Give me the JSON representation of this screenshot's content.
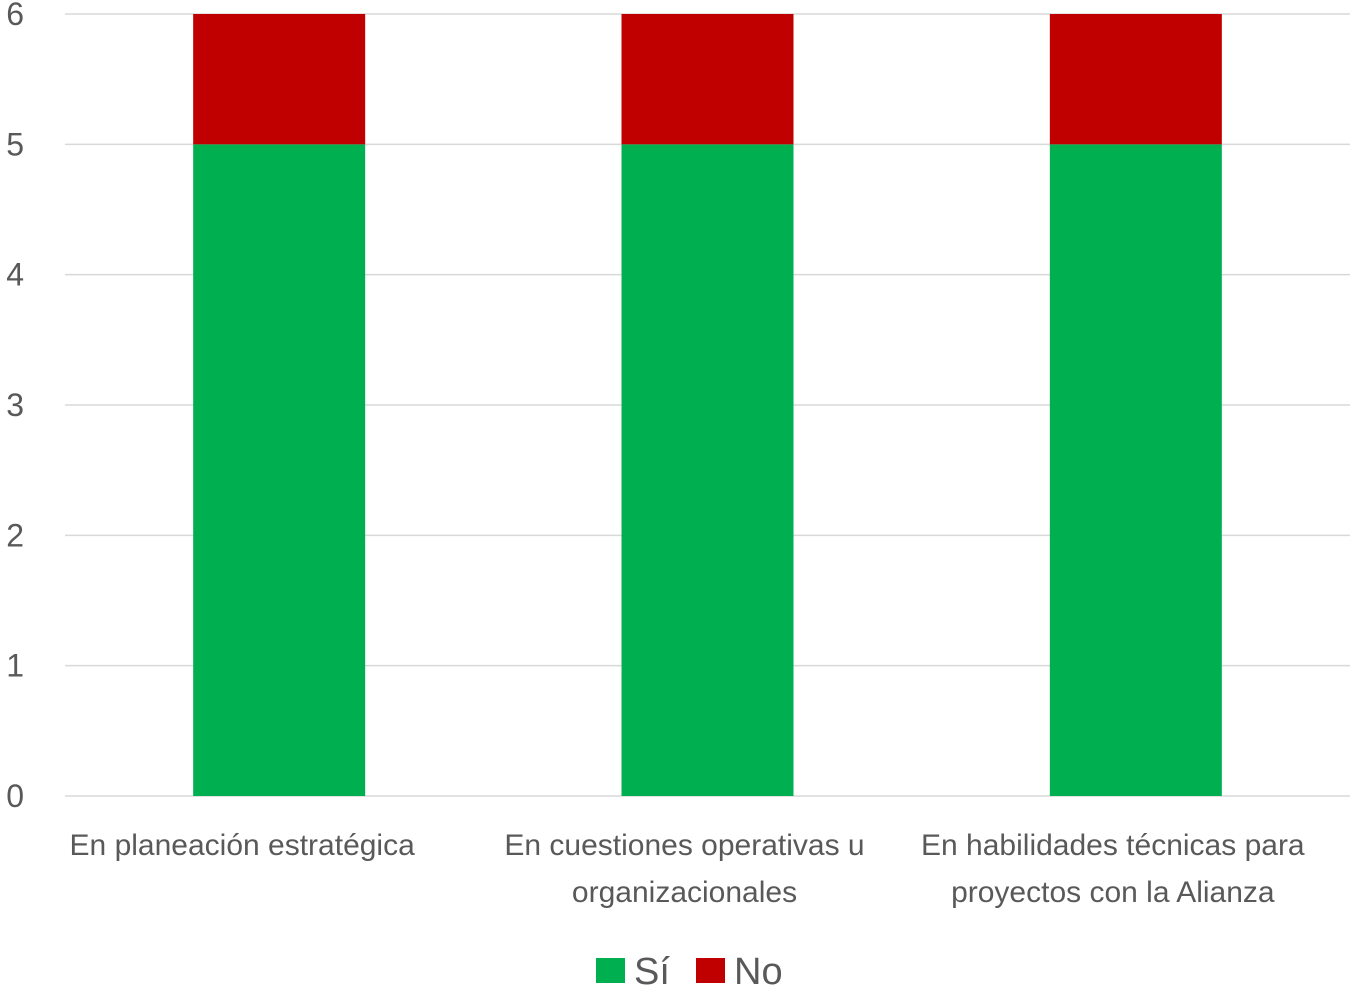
{
  "chart_data": {
    "type": "bar",
    "stacked": true,
    "categories": [
      [
        "En planeación estratégica"
      ],
      [
        "En cuestiones operativas u",
        "organizacionales"
      ],
      [
        "En habilidades técnicas para",
        "proyectos con la Alianza"
      ]
    ],
    "series": [
      {
        "name": "Sí",
        "values": [
          5,
          5,
          5
        ],
        "color": "#00B050"
      },
      {
        "name": "No",
        "values": [
          1,
          1,
          1
        ],
        "color": "#C00000"
      }
    ],
    "ylim": [
      0,
      6
    ],
    "yticks": [
      0,
      1,
      2,
      3,
      4,
      5,
      6
    ],
    "title": "",
    "xlabel": "",
    "ylabel": "",
    "grid": true,
    "legend_position": "bottom"
  }
}
